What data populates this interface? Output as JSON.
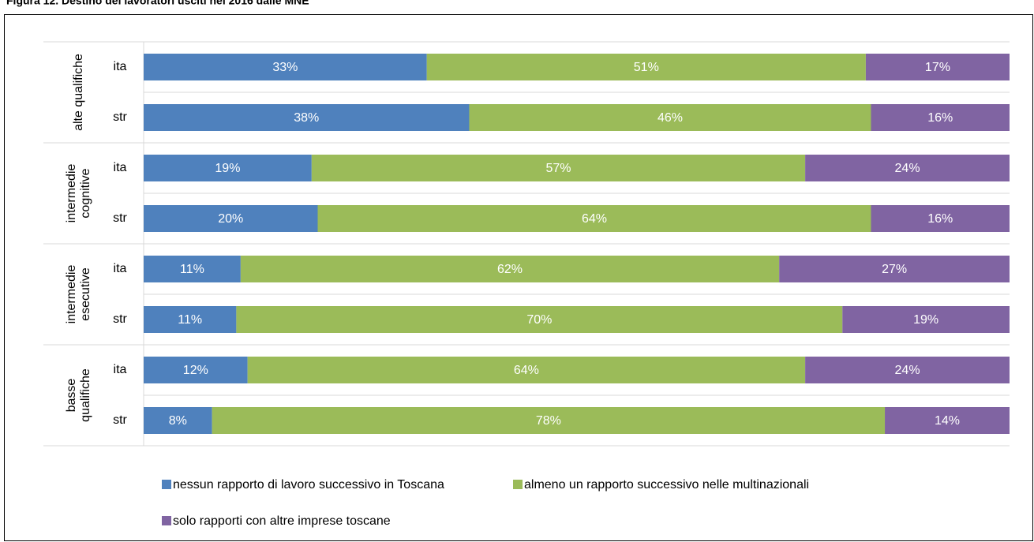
{
  "chart_data": {
    "type": "stacked-barh",
    "title": "Figura 12. Destino dei lavoratori usciti nel 2016 dalle MNE",
    "groups": [
      [
        "alte qualifiche"
      ],
      [
        "intermedie",
        "cognitive"
      ],
      [
        "intermedie",
        "esecutive"
      ],
      [
        "basse",
        "qualifiche"
      ]
    ],
    "categories": [
      "ita",
      "str",
      "ita",
      "str",
      "ita",
      "str",
      "ita",
      "str"
    ],
    "xlim": [
      0,
      100
    ],
    "series": [
      {
        "name": "nessun rapporto di lavoro successivo in Toscana",
        "color": "#4f81bd",
        "values": [
          32.7,
          37.6,
          19.4,
          20.1,
          11.2,
          10.7,
          12.0,
          7.9
        ],
        "value_labels": [
          "33%",
          "38%",
          "19%",
          "20%",
          "11%",
          "11%",
          "12%",
          "8%"
        ]
      },
      {
        "name": "almeno un rapporto successivo nelle multinazionali",
        "color": "#9bbb59",
        "values": [
          50.7,
          46.4,
          57.0,
          63.9,
          62.2,
          70.0,
          64.4,
          77.7
        ],
        "value_labels": [
          "51%",
          "46%",
          "57%",
          "64%",
          "62%",
          "70%",
          "64%",
          "78%"
        ]
      },
      {
        "name": "solo rapporti con altre imprese toscane",
        "color": "#8064a2",
        "values": [
          16.6,
          16.0,
          23.6,
          16.0,
          26.6,
          19.3,
          23.6,
          14.4
        ],
        "value_labels": [
          "17%",
          "16%",
          "24%",
          "16%",
          "27%",
          "19%",
          "24%",
          "14%"
        ]
      }
    ]
  }
}
